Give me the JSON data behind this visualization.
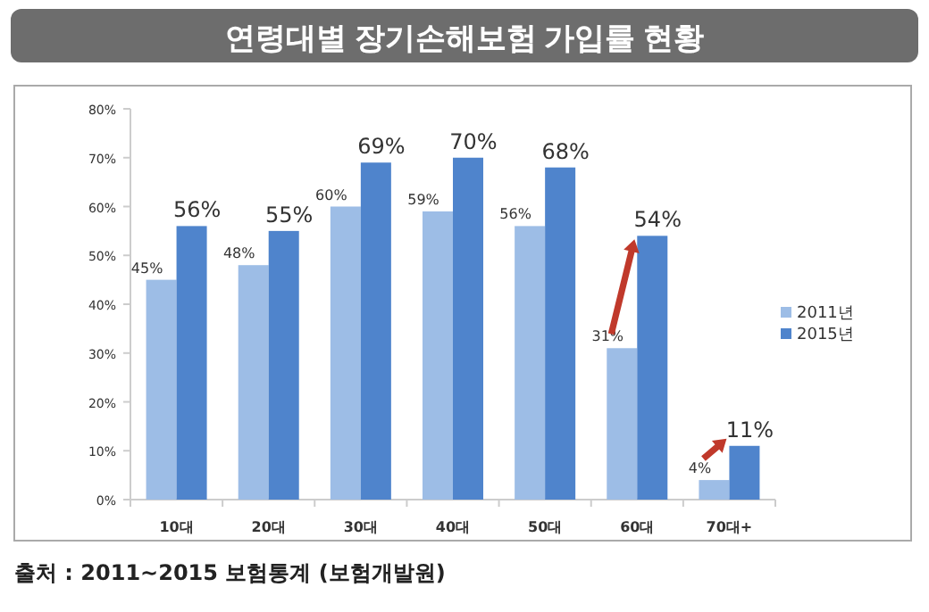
{
  "chart_data": {
    "type": "bar",
    "title": "연령대별 장기손해보험 가입률 현황",
    "categories": [
      "10대",
      "20대",
      "30대",
      "40대",
      "50대",
      "60대",
      "70대+"
    ],
    "series": [
      {
        "name": "2011년",
        "color": "#9dbde6",
        "values": [
          45,
          48,
          60,
          59,
          56,
          31,
          4
        ],
        "value_labels": [
          "45%",
          "48%",
          "60%",
          "59%",
          "56%",
          "31%",
          "4%"
        ]
      },
      {
        "name": "2015년",
        "color": "#4f84cc",
        "values": [
          56,
          55,
          69,
          70,
          68,
          54,
          11
        ],
        "value_labels": [
          "56%",
          "55%",
          "69%",
          "70%",
          "68%",
          "54%",
          "11%"
        ]
      }
    ],
    "ylim": [
      0,
      80
    ],
    "yticks": [
      {
        "value": 0,
        "label": "0%"
      },
      {
        "value": 10,
        "label": "10%"
      },
      {
        "value": 20,
        "label": "20%"
      },
      {
        "value": 30,
        "label": "30%"
      },
      {
        "value": 40,
        "label": "40%"
      },
      {
        "value": 50,
        "label": "50%"
      },
      {
        "value": 60,
        "label": "60%"
      },
      {
        "value": 70,
        "label": "70%"
      },
      {
        "value": 80,
        "label": "80%"
      }
    ],
    "legend": "right",
    "grid": false,
    "annotations": [
      "출처 : 2011~2015 보험통계 (보험개발원)"
    ]
  }
}
